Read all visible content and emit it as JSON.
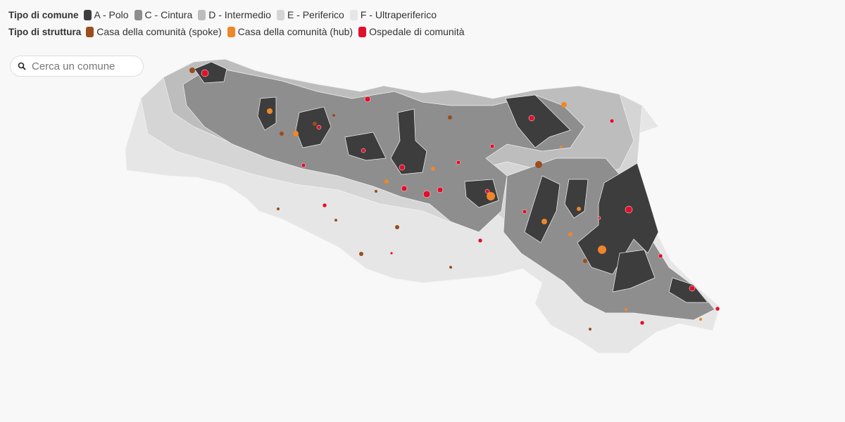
{
  "legend": {
    "comune_title": "Tipo di comune",
    "comune_items": [
      {
        "label": "A - Polo",
        "color": "#3d3d3d"
      },
      {
        "label": "C - Cintura",
        "color": "#8e8e8e"
      },
      {
        "label": "D - Intermedio",
        "color": "#bdbdbd"
      },
      {
        "label": "E - Periferico",
        "color": "#d5d5d5"
      },
      {
        "label": "F - Ultraperiferico",
        "color": "#e6e6e6"
      }
    ],
    "struttura_title": "Tipo di struttura",
    "struttura_items": [
      {
        "label": "Casa della comunità (spoke)",
        "color": "#9a4e1c"
      },
      {
        "label": "Casa della comunità (hub)",
        "color": "#f0862a"
      },
      {
        "label": "Ospedale di comunità",
        "color": "#e0102a"
      }
    ]
  },
  "search": {
    "placeholder": "Cerca un comune"
  }
}
